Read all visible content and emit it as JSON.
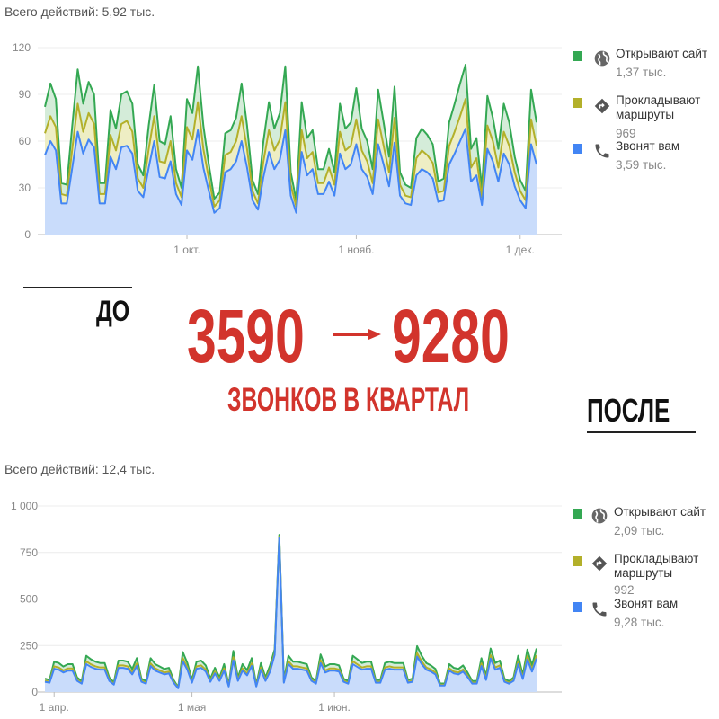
{
  "headline": {
    "before_label": "ДО",
    "after_label": "ПОСЛЕ",
    "from_value": "3590",
    "to_value": "9280",
    "subtitle": "ЗВОНКОВ В КВАРТАЛ",
    "accent_color": "#d2342c"
  },
  "chart_data": [
    {
      "type": "area",
      "stacked": true,
      "title": "Всего действий: 5,92 тыс.",
      "ylim": [
        0,
        120
      ],
      "y_ticks": [
        0,
        30,
        60,
        90,
        120
      ],
      "y_tick_labels": [
        "0",
        "30",
        "60",
        "90",
        "120"
      ],
      "x_ticks": [
        {
          "index": 26,
          "label": "1 окт."
        },
        {
          "index": 57,
          "label": "1 нояб."
        },
        {
          "index": 87,
          "label": "1 дек."
        }
      ],
      "grid": true,
      "legend_position": "right",
      "series": [
        {
          "name": "Звонят вам",
          "total": "3,59 тыс.",
          "icon": "phone-icon",
          "color": "#4285f4",
          "fill": "#c9dcfb",
          "values": [
            51,
            60,
            54,
            20,
            20,
            43,
            66,
            52,
            61,
            56,
            20,
            20,
            50,
            42,
            56,
            57,
            52,
            28,
            24,
            43,
            60,
            37,
            36,
            47,
            26,
            19,
            54,
            48,
            67,
            43,
            28,
            14,
            17,
            40,
            42,
            47,
            60,
            43,
            22,
            16,
            37,
            53,
            42,
            48,
            67,
            25,
            14,
            53,
            38,
            42,
            26,
            26,
            34,
            25,
            52,
            42,
            45,
            58,
            42,
            37,
            26,
            58,
            45,
            31,
            59,
            25,
            20,
            19,
            38,
            42,
            40,
            36,
            21,
            22,
            45,
            52,
            60,
            68,
            34,
            38,
            19,
            55,
            47,
            34,
            52,
            45,
            31,
            22,
            17,
            58,
            45
          ]
        },
        {
          "name": "Прокладывают маршруты",
          "total": "969",
          "icon": "directions-icon",
          "color": "#b3b02a",
          "fill": "#eeeec4",
          "values": [
            14,
            16,
            15,
            6,
            5,
            12,
            18,
            14,
            17,
            15,
            6,
            6,
            14,
            12,
            15,
            16,
            14,
            8,
            6,
            12,
            16,
            10,
            10,
            13,
            7,
            5,
            15,
            13,
            18,
            12,
            8,
            4,
            5,
            11,
            11,
            13,
            16,
            12,
            6,
            4,
            10,
            14,
            12,
            13,
            18,
            7,
            4,
            14,
            11,
            11,
            7,
            7,
            9,
            7,
            14,
            12,
            12,
            16,
            12,
            10,
            7,
            16,
            12,
            9,
            16,
            7,
            5,
            5,
            11,
            12,
            11,
            10,
            6,
            6,
            12,
            14,
            16,
            19,
            9,
            11,
            5,
            15,
            13,
            9,
            14,
            12,
            9,
            6,
            5,
            16,
            12
          ]
        },
        {
          "name": "Открывают сайт",
          "total": "1,37 тыс.",
          "icon": "globe-icon",
          "color": "#34a853",
          "fill": "#d4ecd9",
          "values": [
            17,
            21,
            18,
            7,
            7,
            15,
            22,
            18,
            20,
            19,
            7,
            7,
            16,
            14,
            19,
            19,
            18,
            9,
            8,
            15,
            20,
            13,
            12,
            16,
            9,
            6,
            18,
            17,
            23,
            15,
            9,
            5,
            5,
            14,
            14,
            15,
            21,
            15,
            7,
            6,
            13,
            18,
            14,
            17,
            23,
            8,
            4,
            18,
            13,
            14,
            9,
            9,
            12,
            8,
            18,
            14,
            15,
            20,
            14,
            13,
            9,
            19,
            15,
            10,
            20,
            8,
            7,
            6,
            13,
            14,
            13,
            12,
            7,
            8,
            15,
            18,
            21,
            22,
            12,
            13,
            6,
            19,
            15,
            12,
            18,
            15,
            10,
            7,
            6,
            19,
            15
          ]
        }
      ]
    },
    {
      "type": "area",
      "stacked": true,
      "title": "Всего действий: 12,4 тыс.",
      "ylim": [
        0,
        1000
      ],
      "y_ticks": [
        0,
        250,
        500,
        750,
        1000
      ],
      "y_tick_labels": [
        "0",
        "250",
        "500",
        "750",
        "1 000"
      ],
      "x_ticks": [
        {
          "index": 2,
          "label": "1 апр."
        },
        {
          "index": 32,
          "label": "1 мая"
        },
        {
          "index": 63,
          "label": "1 июн."
        }
      ],
      "grid": true,
      "legend_position": "right",
      "series": [
        {
          "name": "Звонят вам",
          "total": "9,28 тыс.",
          "icon": "phone-icon",
          "color": "#4285f4",
          "fill": "#c9dcfb",
          "values": [
            55,
            50,
            125,
            120,
            105,
            115,
            115,
            60,
            45,
            150,
            135,
            125,
            120,
            120,
            60,
            40,
            130,
            130,
            125,
            95,
            140,
            55,
            45,
            140,
            115,
            105,
            95,
            100,
            50,
            20,
            165,
            120,
            50,
            125,
            130,
            110,
            55,
            100,
            60,
            115,
            30,
            170,
            60,
            115,
            90,
            140,
            30,
            120,
            60,
            110,
            200,
            830,
            50,
            150,
            125,
            125,
            120,
            115,
            60,
            45,
            155,
            105,
            115,
            115,
            110,
            55,
            45,
            150,
            135,
            120,
            125,
            125,
            50,
            50,
            120,
            125,
            120,
            120,
            120,
            50,
            55,
            190,
            150,
            120,
            110,
            95,
            35,
            35,
            115,
            100,
            95,
            110,
            80,
            45,
            45,
            140,
            65,
            180,
            120,
            130,
            55,
            45,
            60,
            150,
            70,
            175,
            110,
            180
          ]
        },
        {
          "name": "Прокладывают маршруты",
          "total": "992",
          "icon": "directions-icon",
          "color": "#b3b02a",
          "fill": "#eeeec4",
          "values": [
            6,
            5,
            13,
            12,
            11,
            12,
            12,
            6,
            5,
            15,
            14,
            13,
            12,
            12,
            6,
            4,
            13,
            13,
            13,
            10,
            14,
            6,
            5,
            14,
            12,
            11,
            10,
            10,
            5,
            2,
            17,
            12,
            5,
            13,
            13,
            11,
            6,
            10,
            6,
            12,
            3,
            17,
            6,
            12,
            9,
            14,
            3,
            12,
            6,
            11,
            10,
            5,
            5,
            15,
            13,
            13,
            12,
            12,
            6,
            5,
            16,
            11,
            12,
            12,
            11,
            6,
            5,
            15,
            14,
            12,
            13,
            13,
            5,
            5,
            12,
            13,
            12,
            12,
            12,
            5,
            6,
            19,
            15,
            12,
            11,
            10,
            4,
            4,
            12,
            10,
            10,
            11,
            8,
            5,
            5,
            14,
            7,
            18,
            12,
            13,
            6,
            5,
            6,
            15,
            7,
            18,
            11,
            18
          ]
        },
        {
          "name": "Открывают сайт",
          "total": "2,09 тыс.",
          "icon": "globe-icon",
          "color": "#34a853",
          "fill": "#d4ecd9",
          "values": [
            11,
            10,
            25,
            24,
            21,
            23,
            23,
            12,
            9,
            30,
            27,
            25,
            24,
            24,
            12,
            8,
            26,
            26,
            25,
            19,
            28,
            11,
            9,
            28,
            23,
            21,
            19,
            20,
            10,
            4,
            33,
            24,
            10,
            25,
            26,
            22,
            11,
            20,
            12,
            23,
            6,
            34,
            12,
            23,
            18,
            28,
            6,
            24,
            12,
            22,
            20,
            10,
            10,
            30,
            25,
            25,
            24,
            23,
            12,
            9,
            31,
            21,
            23,
            23,
            22,
            11,
            9,
            30,
            27,
            24,
            25,
            25,
            10,
            10,
            24,
            25,
            24,
            24,
            24,
            10,
            11,
            38,
            30,
            24,
            22,
            19,
            7,
            7,
            23,
            20,
            19,
            22,
            16,
            9,
            9,
            28,
            13,
            36,
            24,
            26,
            11,
            9,
            12,
            30,
            14,
            35,
            22,
            36
          ]
        }
      ]
    }
  ]
}
